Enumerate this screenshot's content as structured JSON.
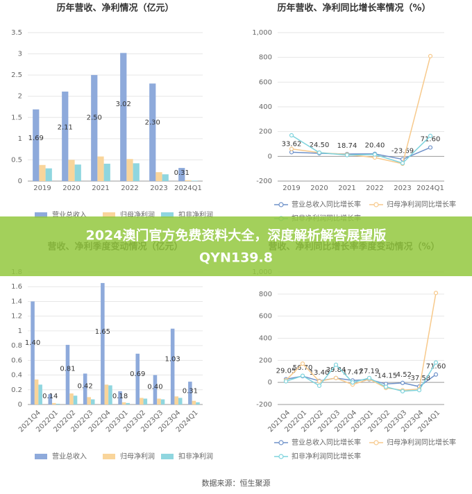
{
  "chart_data": [
    {
      "type": "bar",
      "title": "历年营收、净利情况（亿元）",
      "categories": [
        "2019",
        "2020",
        "2021",
        "2022",
        "2023",
        "2024Q1"
      ],
      "series": [
        {
          "name": "营业总收入",
          "color": "#8eaadb",
          "values": [
            1.69,
            2.11,
            2.5,
            3.02,
            2.3,
            0.31
          ],
          "value_labels": [
            "1.69",
            "2.11",
            "2.50",
            "3.02",
            "2.30",
            "0.31"
          ]
        },
        {
          "name": "归母净利润",
          "color": "#f9d59b",
          "values": [
            0.38,
            0.5,
            0.58,
            0.52,
            0.21,
            0.02
          ]
        },
        {
          "name": "扣非净利润",
          "color": "#8fd6df",
          "values": [
            0.3,
            0.39,
            0.41,
            0.42,
            0.16,
            0.01
          ]
        }
      ],
      "ylim": [
        0,
        3.5
      ],
      "yticks": [
        0,
        0.5,
        1,
        1.5,
        2,
        2.5,
        3,
        3.5
      ],
      "grid": true
    },
    {
      "type": "line",
      "title": "历年营收、净利同比增长率情况（%）",
      "categories": [
        "2019",
        "2020",
        "2021",
        "2022",
        "2023",
        "2024Q1"
      ],
      "series": [
        {
          "name": "营业总收入同比增长率",
          "color": "#6e91c9",
          "values": [
            33.62,
            24.5,
            18.74,
            20.4,
            -23.69,
            71.6
          ],
          "value_labels": [
            "33.62",
            "24.50",
            "18.74",
            "20.40",
            "-23.69",
            "71.60"
          ]
        },
        {
          "name": "归母净利润同比增长率",
          "color": "#f7c98b",
          "values": [
            60,
            30,
            15,
            -10,
            -60,
            810
          ]
        },
        {
          "name": "扣非净利润同比增长率",
          "color": "#7dd3dd",
          "values": [
            170,
            30,
            10,
            15,
            -55,
            165
          ]
        }
      ],
      "ylim": [
        -200,
        1000
      ],
      "yticks": [
        -200,
        0,
        200,
        400,
        600,
        800,
        {
          "value": 1000,
          "label": "1,000"
        }
      ],
      "grid": true
    },
    {
      "type": "bar",
      "title": "营收、净利季度变动情况（亿元）",
      "categories": [
        "2021Q4",
        "2022Q1",
        "2022Q2",
        "2022Q3",
        "2022Q4",
        "2023Q1",
        "2023Q2",
        "2023Q3",
        "2023Q4",
        "2024Q1"
      ],
      "series": [
        {
          "name": "营业总收入",
          "color": "#8eaadb",
          "values": [
            1.4,
            0.14,
            0.81,
            0.42,
            1.65,
            0.18,
            0.69,
            0.4,
            1.03,
            0.31
          ],
          "value_labels": [
            "1.40",
            "0.14",
            "0.81",
            "0.42",
            "1.65",
            "0.18",
            "0.69",
            "0.40",
            "1.03",
            "0.31"
          ]
        },
        {
          "name": "归母净利润",
          "color": "#f9d59b",
          "values": [
            0.34,
            0.02,
            0.15,
            0.1,
            0.27,
            0.03,
            0.09,
            0.08,
            0.11,
            0.05
          ]
        },
        {
          "name": "扣非净利润",
          "color": "#8fd6df",
          "values": [
            0.27,
            0.01,
            0.12,
            0.07,
            0.26,
            0.02,
            0.08,
            0.07,
            0.09,
            0.03
          ]
        }
      ],
      "ylim": [
        0,
        1.8
      ],
      "yticks": [
        0,
        0.2,
        0.4,
        0.6,
        0.8,
        1,
        1.2,
        1.4,
        1.6,
        1.8
      ],
      "grid": true
    },
    {
      "type": "line",
      "title": "营收、净利同比增长率季度变动情况（%）",
      "categories": [
        "2021Q4",
        "2022Q1",
        "2022Q2",
        "2022Q3",
        "2022Q4",
        "2023Q1",
        "2023Q2",
        "2023Q3",
        "2023Q4",
        "2024Q1"
      ],
      "series": [
        {
          "name": "营业总收入同比增长率",
          "color": "#6e91c9",
          "values": [
            29.05,
            56.7,
            13.4,
            39.84,
            17.47,
            27.19,
            -14.15,
            -4.52,
            -37.58,
            71.6
          ],
          "value_labels": [
            "29.05",
            "56.70",
            "13.40",
            "39.84",
            "17.47",
            "27.19",
            "-14.15",
            "-4.52",
            "-37.58",
            "71.60"
          ]
        },
        {
          "name": "归母净利润同比增长率",
          "color": "#f7c98b",
          "values": [
            20,
            170,
            10,
            40,
            -20,
            30,
            -50,
            -70,
            -60,
            810
          ]
        },
        {
          "name": "扣非净利润同比增长率",
          "color": "#7dd3dd",
          "values": [
            10,
            60,
            -30,
            160,
            0,
            40,
            -40,
            -80,
            -70,
            180
          ]
        }
      ],
      "ylim": [
        -200,
        1000
      ],
      "yticks": [
        -200,
        0,
        200,
        400,
        600,
        800,
        {
          "value": 1000,
          "label": "1,000"
        }
      ],
      "grid": true
    }
  ],
  "banner": {
    "line1": "2024澳门官方免费资料大全，深度解析解答展望版",
    "line2": "QYN139.8"
  },
  "source": "数据来源：恒生聚源"
}
